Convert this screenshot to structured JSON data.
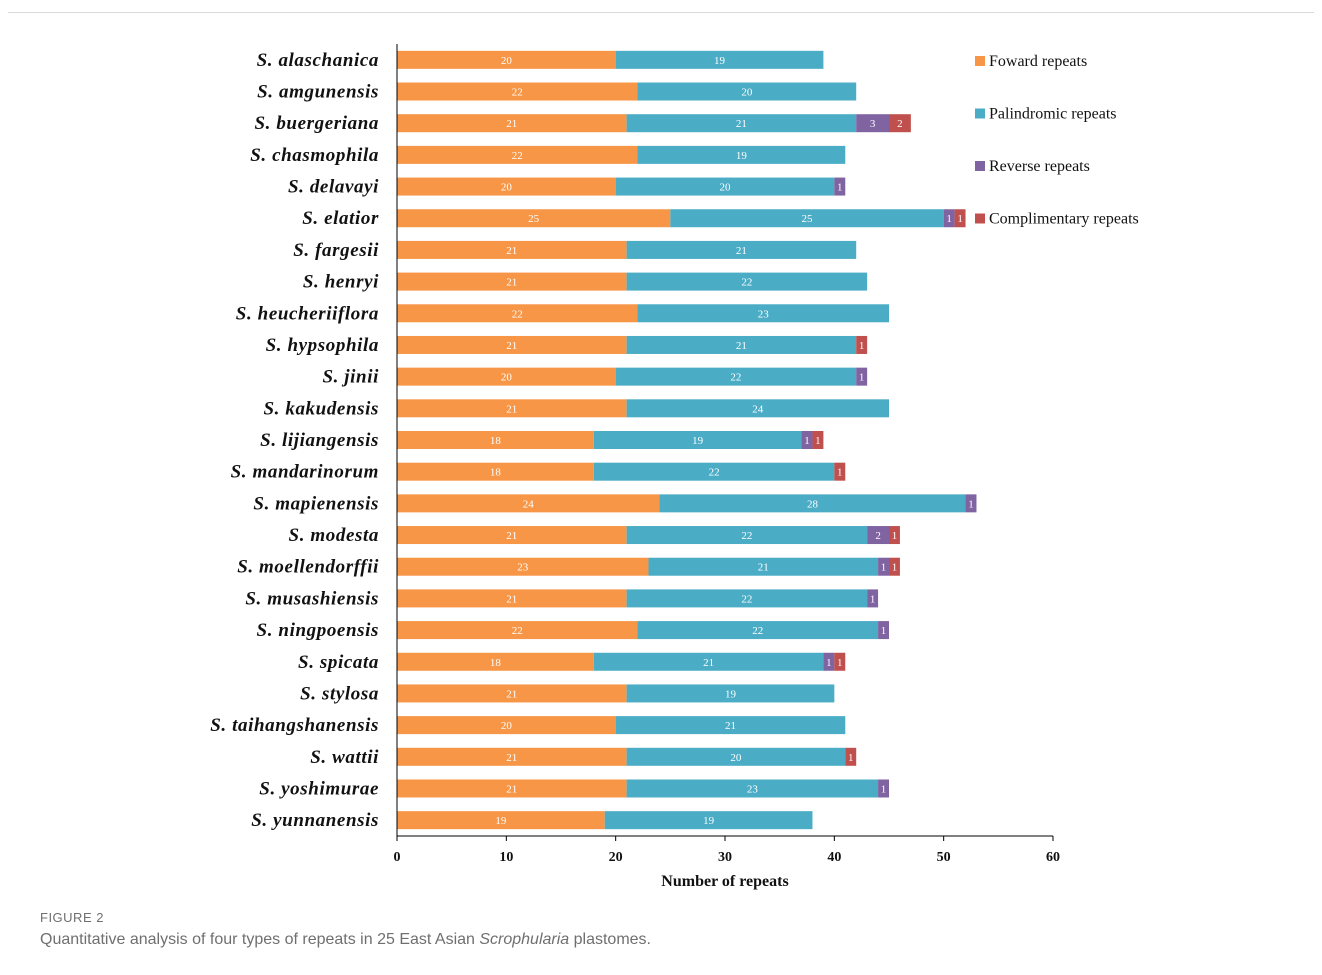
{
  "figure": {
    "label": "FIGURE 2",
    "caption_before": "Quantitative analysis of four types of repeats in 25 East Asian ",
    "caption_italic": "Scrophularia",
    "caption_after": " plastomes."
  },
  "chart_data": {
    "type": "bar",
    "orientation": "horizontal",
    "stacked": true,
    "xlabel": "Number of repeats",
    "xlim": [
      0,
      60
    ],
    "xticks": [
      0,
      10,
      20,
      30,
      40,
      50,
      60
    ],
    "grid": false,
    "legend_position": "top-right",
    "categories": [
      "S. alaschanica",
      "S. amgunensis",
      "S. buergeriana",
      "S. chasmophila",
      "S. delavayi",
      "S. elatior",
      "S. fargesii",
      "S. henryi",
      "S. heucheriiflora",
      "S. hypsophila",
      "S. jinii",
      "S. kakudensis",
      "S. lijiangensis",
      "S. mandarinorum",
      "S. mapienensis",
      "S. modesta",
      "S. moellendorffii",
      "S. musashiensis",
      "S. ningpoensis",
      "S. spicata",
      "S. stylosa",
      "S. taihangshanensis",
      "S. wattii",
      "S. yoshimurae",
      "S. yunnanensis"
    ],
    "series": [
      {
        "name": "Foward repeats",
        "color": "#F79646",
        "values": [
          20,
          22,
          21,
          22,
          20,
          25,
          21,
          21,
          22,
          21,
          20,
          21,
          18,
          18,
          24,
          21,
          23,
          21,
          22,
          18,
          21,
          20,
          21,
          21,
          19
        ]
      },
      {
        "name": "Palindromic repeats",
        "color": "#4BACC6",
        "values": [
          19,
          20,
          21,
          19,
          20,
          25,
          21,
          22,
          23,
          21,
          22,
          24,
          19,
          22,
          28,
          22,
          21,
          22,
          22,
          21,
          19,
          21,
          20,
          23,
          19
        ]
      },
      {
        "name": "Reverse repeats",
        "color": "#8064A2",
        "values": [
          0,
          0,
          3,
          0,
          1,
          1,
          0,
          0,
          0,
          0,
          1,
          0,
          1,
          0,
          1,
          2,
          1,
          1,
          1,
          1,
          0,
          0,
          0,
          1,
          0
        ]
      },
      {
        "name": "Complimentary repeats",
        "color": "#C0504D",
        "values": [
          0,
          0,
          2,
          0,
          0,
          1,
          0,
          0,
          0,
          1,
          0,
          0,
          1,
          1,
          0,
          1,
          1,
          0,
          0,
          1,
          0,
          0,
          1,
          0,
          0
        ]
      }
    ]
  }
}
